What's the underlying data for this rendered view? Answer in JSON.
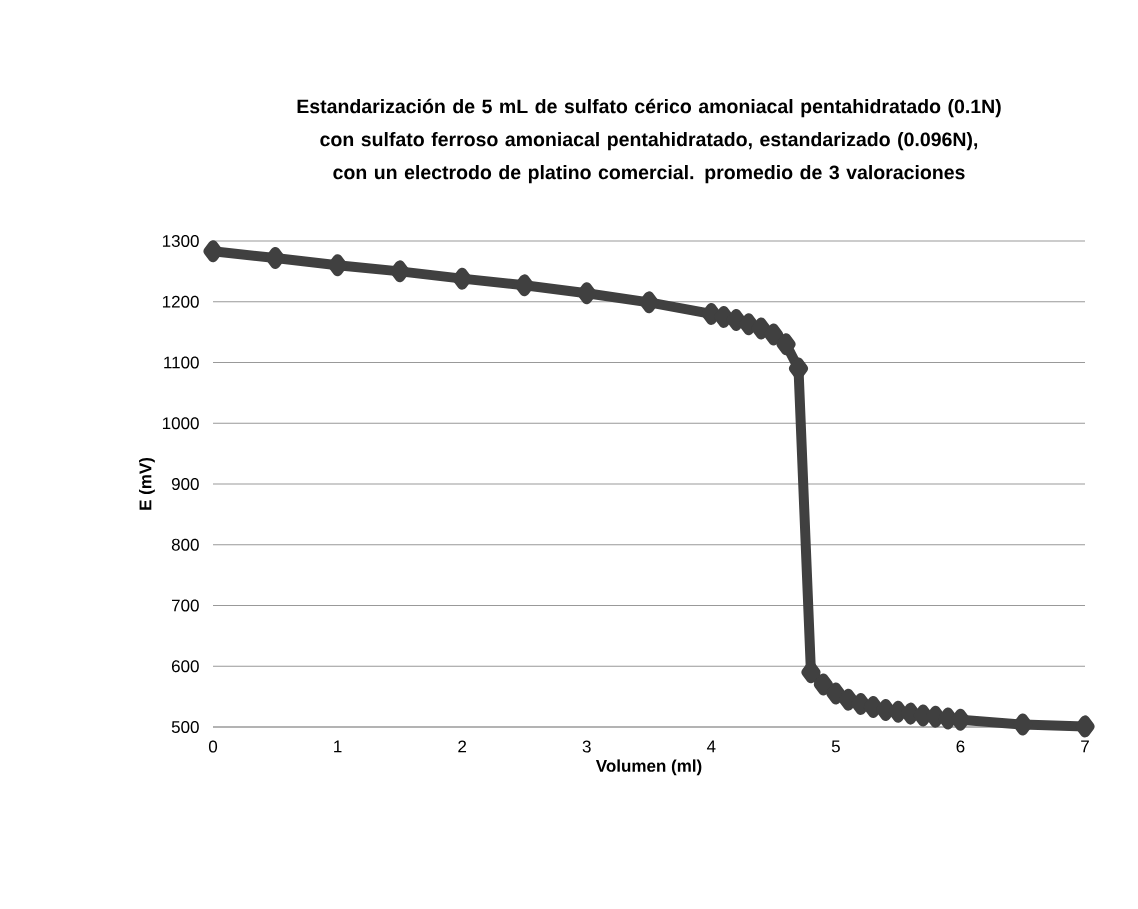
{
  "chart_data": {
    "type": "line",
    "title": "Estandarización de 5 mL de sulfato cérico amoniacal pentahidratado (0.1N) con sulfato ferroso amoniacal pentahidratado, estandarizado (0.096N), con un electrodo de platino comercial. promedio de 3 valoraciones",
    "xlabel": "Volumen (ml)",
    "ylabel": "E (mV)",
    "x": [
      0,
      0.5,
      1,
      1.5,
      2,
      2.5,
      3,
      3.5,
      4,
      4.1,
      4.2,
      4.3,
      4.4,
      4.5,
      4.6,
      4.7,
      4.8,
      4.9,
      5,
      5.1,
      5.2,
      5.3,
      5.4,
      5.5,
      5.6,
      5.7,
      5.8,
      5.9,
      6,
      6.5,
      7
    ],
    "series": [
      {
        "color": "#404040",
        "values": [
          1283,
          1272,
          1260,
          1250,
          1238,
          1227,
          1214,
          1199,
          1180,
          1175,
          1170,
          1163,
          1156,
          1146,
          1130,
          1090,
          590,
          570,
          555,
          545,
          538,
          533,
          528,
          525,
          522,
          519,
          517,
          514,
          512,
          504,
          501
        ]
      }
    ],
    "xlim": [
      0,
      7
    ],
    "ylim": [
      500,
      1300
    ],
    "xticks": [
      0,
      1,
      2,
      3,
      4,
      5,
      6,
      7
    ],
    "yticks": [
      500,
      600,
      700,
      800,
      900,
      1000,
      1100,
      1200,
      1300
    ],
    "grid": "y",
    "marker": "diamond",
    "line_style": "solid"
  }
}
